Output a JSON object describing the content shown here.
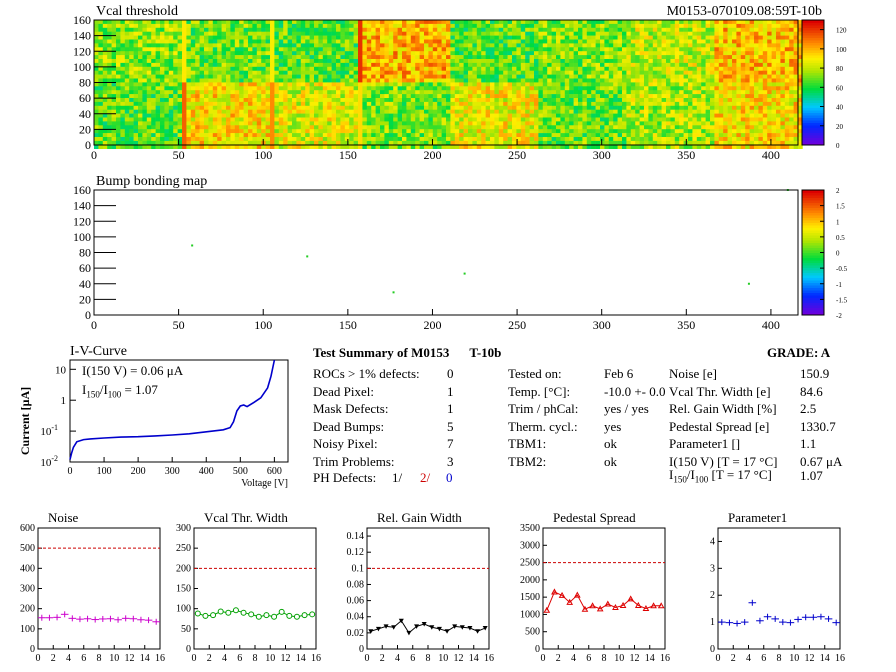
{
  "header": {
    "left_title": "Vcal threshold",
    "right_title": "M0153-070109.08:59T-10b"
  },
  "chart_data": [
    {
      "type": "heatmap",
      "title": "Vcal threshold",
      "xlim": [
        0,
        416
      ],
      "ylim": [
        0,
        160
      ],
      "x_ticks": [
        "0",
        "50",
        "100",
        "150",
        "200",
        "250",
        "300",
        "350",
        "400"
      ],
      "y_ticks": [
        "0",
        "20",
        "40",
        "60",
        "80",
        "100",
        "120",
        "140",
        "160"
      ],
      "color_ticks": [
        "0",
        "20",
        "40",
        "60",
        "80",
        "100",
        "120"
      ],
      "z_range": [
        0,
        130
      ],
      "roc_mean_values": [
        [
          74,
          70,
          68,
          100,
          68,
          72,
          82,
          98
        ],
        [
          68,
          92,
          85,
          72,
          88,
          70,
          78,
          92
        ]
      ]
    },
    {
      "type": "heatmap",
      "title": "Bump bonding map",
      "xlim": [
        0,
        416
      ],
      "ylim": [
        0,
        160
      ],
      "x_ticks": [
        "0",
        "50",
        "100",
        "150",
        "200",
        "250",
        "300",
        "350",
        "400"
      ],
      "y_ticks": [
        "0",
        "20",
        "40",
        "60",
        "80",
        "100",
        "120",
        "140",
        "160"
      ],
      "color_ticks": [
        "-2",
        "-1.5",
        "-1",
        "-0.5",
        "0",
        "0.5",
        "1",
        "1.5",
        "2"
      ],
      "z_range": [
        -2,
        2
      ],
      "points": [
        {
          "x": 58,
          "y": 89
        },
        {
          "x": 126,
          "y": 75
        },
        {
          "x": 177,
          "y": 29
        },
        {
          "x": 219,
          "y": 53
        },
        {
          "x": 387,
          "y": 40
        },
        {
          "x": 410,
          "y": 160
        }
      ]
    },
    {
      "type": "line",
      "title": "I-V-Curve",
      "xlabel": "Voltage [V]",
      "ylabel": "Current [μA]",
      "xlim": [
        0,
        640
      ],
      "ylim_log": [
        0.01,
        20
      ],
      "log_y": true,
      "x_ticks": [
        "0",
        "100",
        "200",
        "300",
        "400",
        "500",
        "600"
      ],
      "y_ticks": [
        {
          "v": 0.01,
          "label": "10",
          "exp": "-2"
        },
        {
          "v": 0.1,
          "label": "10",
          "exp": "-1"
        },
        {
          "v": 1,
          "label": "1"
        },
        {
          "v": 10,
          "label": "10"
        }
      ],
      "annotation1": "I(150 V) = 0.06 μA",
      "annotation2_pre": "I",
      "annotation2_sub1": "150",
      "annotation2_mid": "/I",
      "annotation2_sub2": "100",
      "annotation2_post": " =  1.07",
      "x": [
        0,
        5,
        10,
        20,
        40,
        60,
        100,
        150,
        200,
        250,
        300,
        350,
        400,
        450,
        470,
        480,
        490,
        500,
        510,
        520,
        540,
        560,
        580,
        590,
        600
      ],
      "y": [
        0.012,
        0.02,
        0.03,
        0.045,
        0.053,
        0.056,
        0.06,
        0.064,
        0.066,
        0.07,
        0.075,
        0.082,
        0.095,
        0.11,
        0.13,
        0.2,
        0.45,
        0.65,
        0.7,
        0.62,
        0.85,
        1.2,
        2.5,
        6,
        20
      ]
    },
    {
      "type": "scatter",
      "title": "Noise",
      "categories": [
        "0",
        "1",
        "2",
        "3",
        "4",
        "5",
        "6",
        "7",
        "8",
        "9",
        "10",
        "11",
        "12",
        "13",
        "14",
        "15"
      ],
      "values": [
        155,
        155,
        157,
        172,
        152,
        148,
        150,
        146,
        149,
        150,
        145,
        152,
        150,
        145,
        143,
        135
      ],
      "xlim": [
        0,
        16
      ],
      "ylim": [
        0,
        600
      ],
      "x_ticks": [
        "0",
        "2",
        "4",
        "6",
        "8",
        "10",
        "12",
        "14",
        "16"
      ],
      "y_ticks": [
        "0",
        "100",
        "200",
        "300",
        "400",
        "500",
        "600"
      ],
      "threshold": 500,
      "color": "#cc00cc",
      "marker": "cross"
    },
    {
      "type": "line",
      "title": "Vcal Thr. Width",
      "categories": [
        "0",
        "1",
        "2",
        "3",
        "4",
        "5",
        "6",
        "7",
        "8",
        "9",
        "10",
        "11",
        "12",
        "13",
        "14",
        "15"
      ],
      "values": [
        88,
        82,
        84,
        93,
        90,
        96,
        90,
        86,
        80,
        84,
        80,
        92,
        82,
        80,
        84,
        86
      ],
      "xlim": [
        0,
        16
      ],
      "ylim": [
        0,
        300
      ],
      "x_ticks": [
        "0",
        "2",
        "4",
        "6",
        "8",
        "10",
        "12",
        "14",
        "16"
      ],
      "y_ticks": [
        "0",
        "50",
        "100",
        "150",
        "200",
        "250",
        "300"
      ],
      "threshold": 200,
      "color": "#00a000",
      "marker": "circle"
    },
    {
      "type": "line",
      "title": "Rel. Gain Width",
      "categories": [
        "0",
        "1",
        "2",
        "3",
        "4",
        "5",
        "6",
        "7",
        "8",
        "9",
        "10",
        "11",
        "12",
        "13",
        "14",
        "15"
      ],
      "values": [
        0.022,
        0.025,
        0.028,
        0.027,
        0.035,
        0.02,
        0.028,
        0.031,
        0.027,
        0.025,
        0.022,
        0.028,
        0.027,
        0.026,
        0.022,
        0.026
      ],
      "xlim": [
        0,
        16
      ],
      "ylim": [
        0,
        0.15
      ],
      "x_ticks": [
        "0",
        "2",
        "4",
        "6",
        "8",
        "10",
        "12",
        "14",
        "16"
      ],
      "y_ticks": [
        "0",
        "0.02",
        "0.04",
        "0.06",
        "0.08",
        "0.1",
        "0.12",
        "0.14"
      ],
      "threshold": 0.1,
      "color": "#000000",
      "marker": "triangle-down"
    },
    {
      "type": "line",
      "title": "Pedestal Spread",
      "categories": [
        "0",
        "1",
        "2",
        "3",
        "4",
        "5",
        "6",
        "7",
        "8",
        "9",
        "10",
        "11",
        "12",
        "13",
        "14",
        "15"
      ],
      "values": [
        1120,
        1650,
        1550,
        1350,
        1560,
        1150,
        1250,
        1160,
        1300,
        1200,
        1260,
        1450,
        1260,
        1170,
        1250,
        1250
      ],
      "xlim": [
        0,
        16
      ],
      "ylim": [
        0,
        3500
      ],
      "x_ticks": [
        "0",
        "2",
        "4",
        "6",
        "8",
        "10",
        "12",
        "14",
        "16"
      ],
      "y_ticks": [
        "0",
        "500",
        "1000",
        "1500",
        "2000",
        "2500",
        "3000",
        "3500"
      ],
      "threshold": 2500,
      "color": "#dd0000",
      "marker": "triangle-up"
    },
    {
      "type": "scatter",
      "title": "Parameter1",
      "categories": [
        "0",
        "1",
        "2",
        "3",
        "4",
        "5",
        "6",
        "7",
        "8",
        "9",
        "10",
        "11",
        "12",
        "13",
        "14",
        "15"
      ],
      "values": [
        1.0,
        0.98,
        0.95,
        1.0,
        1.72,
        1.05,
        1.2,
        1.12,
        1.0,
        0.98,
        1.1,
        1.18,
        1.18,
        1.2,
        1.12,
        0.98
      ],
      "xlim": [
        0,
        16
      ],
      "ylim": [
        0,
        4.5
      ],
      "x_ticks": [
        "0",
        "2",
        "4",
        "6",
        "8",
        "10",
        "12",
        "14",
        "16"
      ],
      "y_ticks": [
        "0",
        "1",
        "2",
        "3",
        "4"
      ],
      "color": "#0000cc",
      "marker": "cross"
    }
  ],
  "summary": {
    "title": "Test Summary of M0153",
    "title_tag": "T-10b",
    "grade": "GRADE:  A",
    "rows": [
      {
        "label": "ROCs > 1% defects:",
        "value": "0"
      },
      {
        "label": "Dead Pixel:",
        "value": "1"
      },
      {
        "label": "Mask Defects:",
        "value": "1"
      },
      {
        "label": "Dead Bumps:",
        "value": "5"
      },
      {
        "label": "Noisy Pixel:",
        "value": "7"
      },
      {
        "label": "Trim Problems:",
        "value": "3"
      }
    ],
    "ph_label": "PH Defects:",
    "ph_v1": "1/",
    "ph_v2": "2/",
    "ph_v3": "0",
    "conditions": [
      {
        "label": "Tested on:",
        "value": "Feb 6"
      },
      {
        "label": "Temp. [°C]:",
        "value": "-10.0 +- 0.0"
      },
      {
        "label": "Trim / phCal:",
        "value": "yes / yes"
      },
      {
        "label": "Therm. cycl.:",
        "value": "yes"
      },
      {
        "label": "TBM1:",
        "value": "ok"
      },
      {
        "label": "TBM2:",
        "value": "ok"
      }
    ],
    "metrics": [
      {
        "label": "Noise [e]",
        "value": "150.9"
      },
      {
        "label": "Vcal Thr. Width [e]",
        "value": "84.6"
      },
      {
        "label": "Rel. Gain Width [%]",
        "value": "2.5"
      },
      {
        "label": "Pedestal Spread [e]",
        "value": "1330.7"
      },
      {
        "label": "Parameter1 []",
        "value": "1.1"
      },
      {
        "label": "I(150 V) [T = 17 °C]",
        "value": "0.67 μA"
      }
    ],
    "ratio_label_i": "I",
    "ratio_sub1": "150",
    "ratio_mid": "/I",
    "ratio_sub2": "100",
    "ratio_post": "  [T = 17 °C]",
    "ratio_value": "1.07"
  },
  "colors": {
    "threshold_line": "#cc0000",
    "iv_curve": "#0000cc",
    "ph_red": "#cc0000",
    "ph_blue": "#0000cc"
  }
}
